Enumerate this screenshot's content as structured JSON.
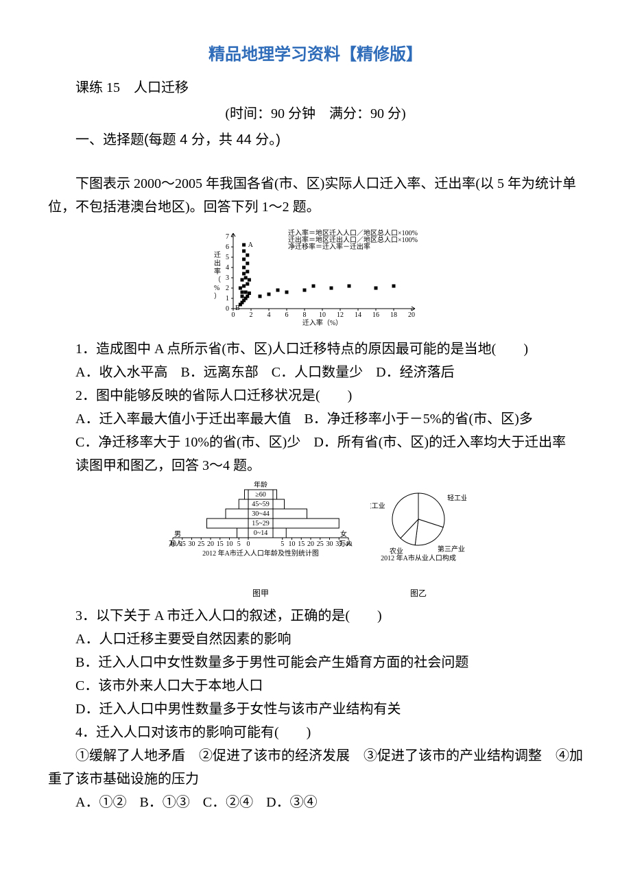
{
  "title": "精品地理学习资料【精修版】",
  "lesson": "课练 15　人口迁移",
  "timing": "(时间：90 分钟　满分：90 分)",
  "section1": "一、选择题(每题 4 分，共 44 分。)",
  "intro1": "下图表示 2000～2005 年我国各省(市、区)实际人口迁入率、迁出率(以 5 年为统计单位，不包括港澳台地区)。回答下列 1～2 题。",
  "scatter": {
    "type": "scatter",
    "xlabel": "迁入率（%）",
    "ylabel": "迁出率（%）",
    "legend": [
      "迁入率＝地区迁入人口／地区总人口×100%",
      "迁出率＝地区迁出人口／地区总人口×100%",
      "净迁移率＝迁入率－迁出率"
    ],
    "xlim": [
      0,
      20
    ],
    "xticks": [
      0,
      2,
      4,
      6,
      8,
      10,
      12,
      14,
      16,
      18,
      20
    ],
    "ylim": [
      0,
      7
    ],
    "yticks": [
      0,
      1,
      2,
      3,
      4,
      5,
      6,
      7
    ],
    "marker": "square",
    "marker_color": "#000000",
    "marker_size": 5,
    "labels": {
      "A": [
        1.2,
        6.2
      ],
      "B": [
        1.0,
        0.4
      ]
    },
    "points": [
      [
        0.8,
        0.4
      ],
      [
        1.0,
        0.6
      ],
      [
        1.2,
        0.8
      ],
      [
        1.0,
        1.2
      ],
      [
        1.4,
        1.0
      ],
      [
        1.6,
        1.2
      ],
      [
        1.0,
        1.6
      ],
      [
        1.4,
        1.6
      ],
      [
        1.8,
        1.5
      ],
      [
        0.8,
        2.0
      ],
      [
        1.2,
        2.2
      ],
      [
        1.6,
        2.4
      ],
      [
        1.0,
        2.8
      ],
      [
        1.4,
        3.0
      ],
      [
        1.8,
        2.8
      ],
      [
        1.2,
        3.4
      ],
      [
        1.6,
        3.6
      ],
      [
        1.2,
        4.0
      ],
      [
        1.6,
        4.4
      ],
      [
        1.2,
        4.8
      ],
      [
        1.6,
        5.2
      ],
      [
        1.2,
        5.6
      ],
      [
        1.2,
        6.2
      ],
      [
        3.0,
        1.2
      ],
      [
        4.0,
        1.4
      ],
      [
        5.0,
        1.8
      ],
      [
        6.0,
        1.6
      ],
      [
        8.0,
        1.8
      ],
      [
        9.0,
        2.2
      ],
      [
        11.0,
        2.0
      ],
      [
        13.0,
        2.2
      ],
      [
        16.0,
        2.0
      ],
      [
        18.0,
        2.2
      ]
    ],
    "axis_color": "#000000",
    "background_color": "#ffffff"
  },
  "q1": {
    "stem": "1．造成图中 A 点所示省(市、区)人口迁移特点的原因最可能的是当地(　　)",
    "opts": [
      "A．收入水平高",
      "B．远离东部",
      "C．人口数量少",
      "D．经济落后"
    ]
  },
  "q2": {
    "stem": "2．图中能够反映的省际人口迁移状况是(　　)",
    "opts": [
      "A．迁入率最大值小于迁出率最大值",
      "B．净迁移率小于－5%的省(市、区)多",
      "C．净迁移率大于 10%的省(市、区)少",
      "D．所有省(市、区)的迁入率均大于迁出率"
    ]
  },
  "intro2": "读图甲和图乙，回答 3～4 题。",
  "pyramid": {
    "type": "pyramid",
    "title": "2012 年A市迁入人口年龄及性别统计图",
    "sub": "图甲",
    "age_groups": [
      "≥60",
      "45~59",
      "30~44",
      "15~29",
      "0~14"
    ],
    "age_key_label": "年龄",
    "male_label": "男",
    "female_label": "女",
    "unit": "万人",
    "xticks": [
      40,
      35,
      30,
      25,
      20,
      15,
      10,
      5,
      0,
      5,
      10,
      15,
      20,
      25,
      30,
      35,
      40
    ],
    "male": [
      2,
      5,
      12,
      22,
      6
    ],
    "female": [
      2,
      6,
      18,
      35,
      7
    ],
    "bar_color": "#ffffff",
    "border_color": "#000000"
  },
  "pie": {
    "type": "pie",
    "title": "2012 年A市从业人口构成",
    "sub": "图乙",
    "slices": [
      {
        "label": "轻工业",
        "value": 30
      },
      {
        "label": "第三产业",
        "value": 22
      },
      {
        "label": "农业",
        "value": 10
      },
      {
        "label": "重工业",
        "value": 38
      }
    ],
    "colors": [
      "#ffffff",
      "#ffffff",
      "#ffffff",
      "#ffffff"
    ],
    "border_color": "#000000"
  },
  "q3": {
    "stem": "3．以下关于 A 市迁入人口的叙述，正确的是(　　)",
    "opts": [
      "A．人口迁移主要受自然因素的影响",
      "B．迁入人口中女性数量多于男性可能会产生婚育方面的社会问题",
      "C．该市外来人口大于本地人口",
      "D．迁入人口中男性数量多于女性与该市产业结构有关"
    ]
  },
  "q4": {
    "stem": "4．迁入人口对该市的影响可能有(　　)",
    "items": "①缓解了人地矛盾　②促进了该市的经济发展　③促进了该市的产业结构调整　④加重了该市基础设施的压力",
    "opts": [
      "A．①②",
      "B．①③",
      "C．②④",
      "D．③④"
    ]
  }
}
